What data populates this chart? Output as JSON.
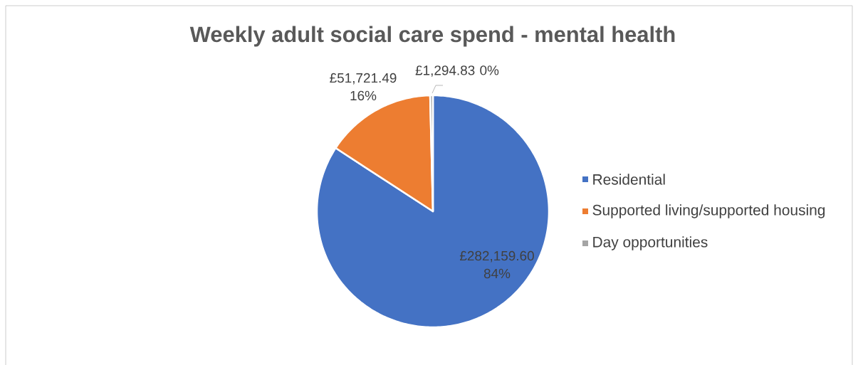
{
  "chart_data": {
    "type": "pie",
    "title": "Weekly adult social care spend - mental health",
    "categories": [
      "Residential",
      "Supported living/supported housing",
      "Day opportunities"
    ],
    "values": [
      282159.6,
      51721.49,
      1294.83
    ],
    "colors": [
      "#4472c4",
      "#ed7d31",
      "#a5a5a5"
    ],
    "value_labels": [
      "£282,159.60 84%",
      "£51,721.49 16%",
      "£1,294.83 0%"
    ],
    "legend": "right"
  }
}
